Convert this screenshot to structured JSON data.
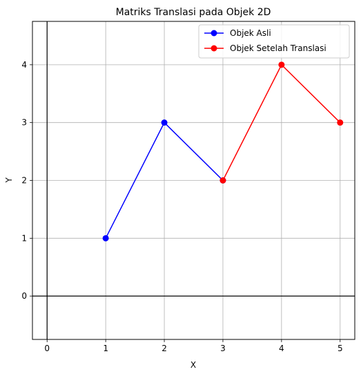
{
  "chart_data": {
    "type": "line",
    "title": "Matriks Translasi pada Objek 2D",
    "xlabel": "X",
    "ylabel": "Y",
    "xlim": [
      -0.25,
      5.25
    ],
    "ylim": [
      -0.75,
      4.75
    ],
    "xticks": [
      0,
      1,
      2,
      3,
      4,
      5
    ],
    "yticks": [
      0,
      1,
      2,
      3,
      4
    ],
    "grid": true,
    "axis_lines": {
      "x0": true,
      "y0": true
    },
    "legend_position": "top-right",
    "series": [
      {
        "name": "Objek Asli",
        "color": "#0000ff",
        "marker": "circle",
        "points": [
          [
            1,
            1
          ],
          [
            2,
            3
          ],
          [
            3,
            2
          ]
        ]
      },
      {
        "name": "Objek Setelah Translasi",
        "color": "#ff0000",
        "marker": "circle",
        "points": [
          [
            3,
            2
          ],
          [
            4,
            4
          ],
          [
            5,
            3
          ]
        ]
      }
    ]
  }
}
